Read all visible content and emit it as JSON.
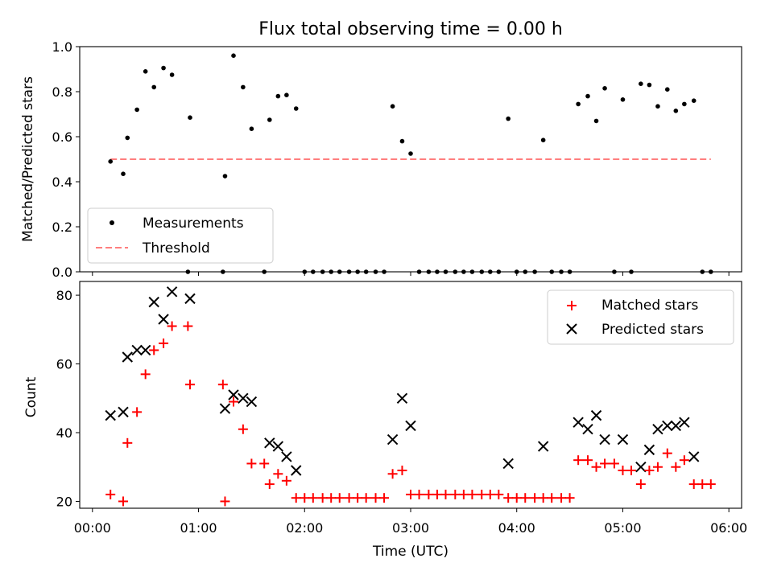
{
  "chart_data": [
    {
      "type": "scatter",
      "title": "Flux total observing time = 0.00 h",
      "xlabel": "",
      "ylabel": "Matched/Predicted stars",
      "xlim_hours": [
        -0.12,
        6.12
      ],
      "ylim": [
        0,
        1.0
      ],
      "xticks": [
        0,
        1,
        2,
        3,
        4,
        5,
        6
      ],
      "yticks": [
        0.0,
        0.2,
        0.4,
        0.6,
        0.8,
        1.0
      ],
      "ytick_labels": [
        "0.0",
        "0.2",
        "0.4",
        "0.6",
        "0.8",
        "1.0"
      ],
      "legend": {
        "position": "lower-left",
        "entries": [
          "Measurements",
          "Threshold"
        ]
      },
      "threshold": {
        "name": "Threshold",
        "value": 0.5,
        "x_start": 0.17,
        "x_end": 5.83,
        "color": "#ff7f7f",
        "style": "dashed"
      },
      "series": [
        {
          "name": "Measurements",
          "color": "#000000",
          "marker": "dot",
          "x": [
            0.17,
            0.29,
            0.33,
            0.42,
            0.5,
            0.58,
            0.67,
            0.75,
            0.9,
            0.92,
            1.23,
            1.25,
            1.33,
            1.42,
            1.5,
            1.62,
            1.67,
            1.75,
            1.83,
            1.92,
            2.0,
            2.08,
            2.17,
            2.25,
            2.33,
            2.42,
            2.5,
            2.58,
            2.67,
            2.75,
            2.83,
            2.92,
            3.0,
            3.08,
            3.17,
            3.25,
            3.33,
            3.42,
            3.5,
            3.58,
            3.67,
            3.75,
            3.83,
            3.92,
            4.0,
            4.08,
            4.17,
            4.25,
            4.33,
            4.42,
            4.5,
            4.58,
            4.67,
            4.75,
            4.83,
            4.92,
            5.0,
            5.08,
            5.17,
            5.25,
            5.33,
            5.42,
            5.5,
            5.58,
            5.67,
            5.75,
            5.83
          ],
          "y": [
            0.49,
            0.435,
            0.595,
            0.72,
            0.89,
            0.82,
            0.905,
            0.875,
            0.0,
            0.685,
            0.0,
            0.425,
            0.96,
            0.82,
            0.635,
            0.0,
            0.675,
            0.78,
            0.785,
            0.725,
            0.0,
            0.0,
            0.0,
            0.0,
            0.0,
            0.0,
            0.0,
            0.0,
            0.0,
            0.0,
            0.735,
            0.58,
            0.525,
            0.0,
            0.0,
            0.0,
            0.0,
            0.0,
            0.0,
            0.0,
            0.0,
            0.0,
            0.0,
            0.68,
            0.0,
            0.0,
            0.0,
            0.585,
            0.0,
            0.0,
            0.0,
            0.745,
            0.78,
            0.67,
            0.815,
            0.0,
            0.765,
            0.0,
            0.835,
            0.83,
            0.735,
            0.81,
            0.715,
            0.745,
            0.76,
            0.0,
            0.0
          ]
        }
      ]
    },
    {
      "type": "scatter",
      "title": "",
      "xlabel": "Time (UTC)",
      "ylabel": "Count",
      "xlim_hours": [
        -0.12,
        6.12
      ],
      "ylim": [
        18,
        84
      ],
      "xticks": [
        0,
        1,
        2,
        3,
        4,
        5,
        6
      ],
      "xtick_labels": [
        "00:00",
        "01:00",
        "02:00",
        "03:00",
        "04:00",
        "05:00",
        "06:00"
      ],
      "yticks": [
        20,
        40,
        60,
        80
      ],
      "ytick_labels": [
        "20",
        "40",
        "60",
        "80"
      ],
      "legend": {
        "position": "top-right",
        "entries": [
          "Matched stars",
          "Predicted stars"
        ]
      },
      "series": [
        {
          "name": "Matched stars",
          "color": "#ff0000",
          "marker": "plus",
          "x": [
            0.17,
            0.29,
            0.33,
            0.42,
            0.5,
            0.58,
            0.67,
            0.75,
            0.9,
            0.92,
            1.23,
            1.25,
            1.33,
            1.42,
            1.5,
            1.62,
            1.67,
            1.75,
            1.83,
            1.92,
            2.0,
            2.08,
            2.17,
            2.25,
            2.33,
            2.42,
            2.5,
            2.58,
            2.67,
            2.75,
            2.83,
            2.92,
            3.0,
            3.08,
            3.17,
            3.25,
            3.33,
            3.42,
            3.5,
            3.58,
            3.67,
            3.75,
            3.83,
            3.92,
            4.0,
            4.08,
            4.17,
            4.25,
            4.33,
            4.42,
            4.5,
            4.58,
            4.67,
            4.75,
            4.83,
            4.92,
            5.0,
            5.08,
            5.17,
            5.25,
            5.33,
            5.42,
            5.5,
            5.58,
            5.67,
            5.75,
            5.83
          ],
          "y": [
            22,
            20,
            37,
            46,
            57,
            64,
            66,
            71,
            71,
            54,
            54,
            20,
            49,
            41,
            31,
            31,
            25,
            28,
            26,
            21,
            21,
            21,
            21,
            21,
            21,
            21,
            21,
            21,
            21,
            21,
            28,
            29,
            22,
            22,
            22,
            22,
            22,
            22,
            22,
            22,
            22,
            22,
            22,
            21,
            21,
            21,
            21,
            21,
            21,
            21,
            21,
            32,
            32,
            30,
            31,
            31,
            29,
            29,
            25,
            29,
            30,
            34,
            30,
            32,
            25,
            25,
            25
          ]
        },
        {
          "name": "Predicted stars",
          "color": "#000000",
          "marker": "x",
          "x": [
            0.17,
            0.29,
            0.33,
            0.42,
            0.5,
            0.58,
            0.67,
            0.75,
            0.92,
            1.25,
            1.33,
            1.42,
            1.5,
            1.67,
            1.75,
            1.83,
            1.92,
            2.83,
            2.92,
            3.0,
            3.92,
            4.25,
            4.58,
            4.67,
            4.75,
            4.83,
            5.0,
            5.17,
            5.25,
            5.33,
            5.42,
            5.5,
            5.58,
            5.67
          ],
          "y": [
            45,
            46,
            62,
            64,
            64,
            78,
            73,
            81,
            79,
            47,
            51,
            50,
            49,
            37,
            36,
            33,
            29,
            38,
            50,
            42,
            31,
            36,
            43,
            41,
            45,
            38,
            38,
            30,
            35,
            41,
            42,
            42,
            43,
            33
          ]
        }
      ]
    }
  ]
}
